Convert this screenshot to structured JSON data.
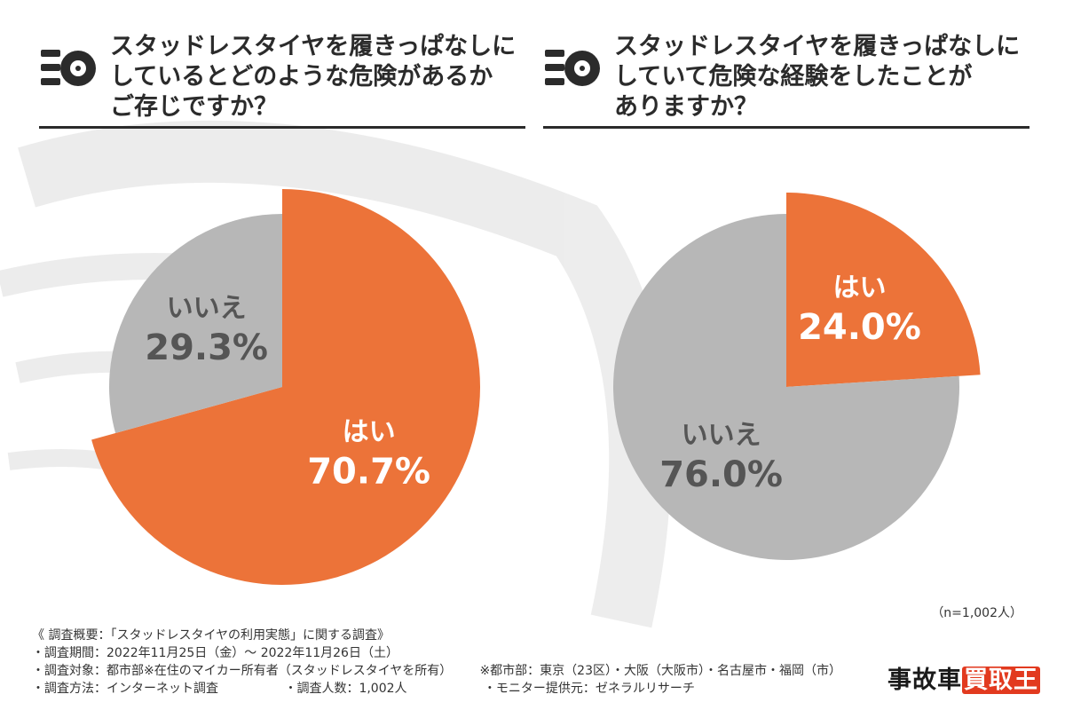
{
  "panels": [
    {
      "title": "スタッドレスタイヤを履きっぱなしに\nしているとどのような危険があるか\nご存じですか？",
      "icon": "tire-icon"
    },
    {
      "title": "スタッドレスタイヤを履きっぱなしに\nしていて危険な経験をしたことが\nありますか？",
      "icon": "tire-icon"
    }
  ],
  "chart_data": [
    {
      "type": "pie",
      "slices": [
        {
          "label": "はい",
          "value": 70.7,
          "display": "70.7%",
          "color": "#ec7339"
        },
        {
          "label": "いいえ",
          "value": 29.3,
          "display": "29.3%",
          "color": "#b7b7b7"
        }
      ]
    },
    {
      "type": "pie",
      "slices": [
        {
          "label": "はい",
          "value": 24.0,
          "display": "24.0%",
          "color": "#ec7339"
        },
        {
          "label": "いいえ",
          "value": 76.0,
          "display": "76.0%",
          "color": "#b7b7b7"
        }
      ]
    }
  ],
  "sample_size": "（n=1,002人）",
  "notes": {
    "heading": "《 調査概要：「スタッドレスタイヤの利用実態」に関する調査》",
    "period": "・調査期間：2022年11月25日（金）～ 2022年11月26日（土）",
    "target": "・調査対象：都市部※在住のマイカー所有者（スタッドレスタイヤを所有）",
    "urban": "※都市部：東京（23区）・大阪（大阪市）・名古屋市・福岡（市）",
    "method": "・調査方法：インターネット調査",
    "count": "・調査人数：1,002人",
    "provider": "・モニター提供元：ゼネラルリサーチ"
  },
  "logo": {
    "prefix": "事故車",
    "accent": "買取王"
  },
  "colors": {
    "orange": "#ec7339",
    "gray": "#b7b7b7",
    "label_white": "#ffffff",
    "label_dark": "#555555"
  }
}
